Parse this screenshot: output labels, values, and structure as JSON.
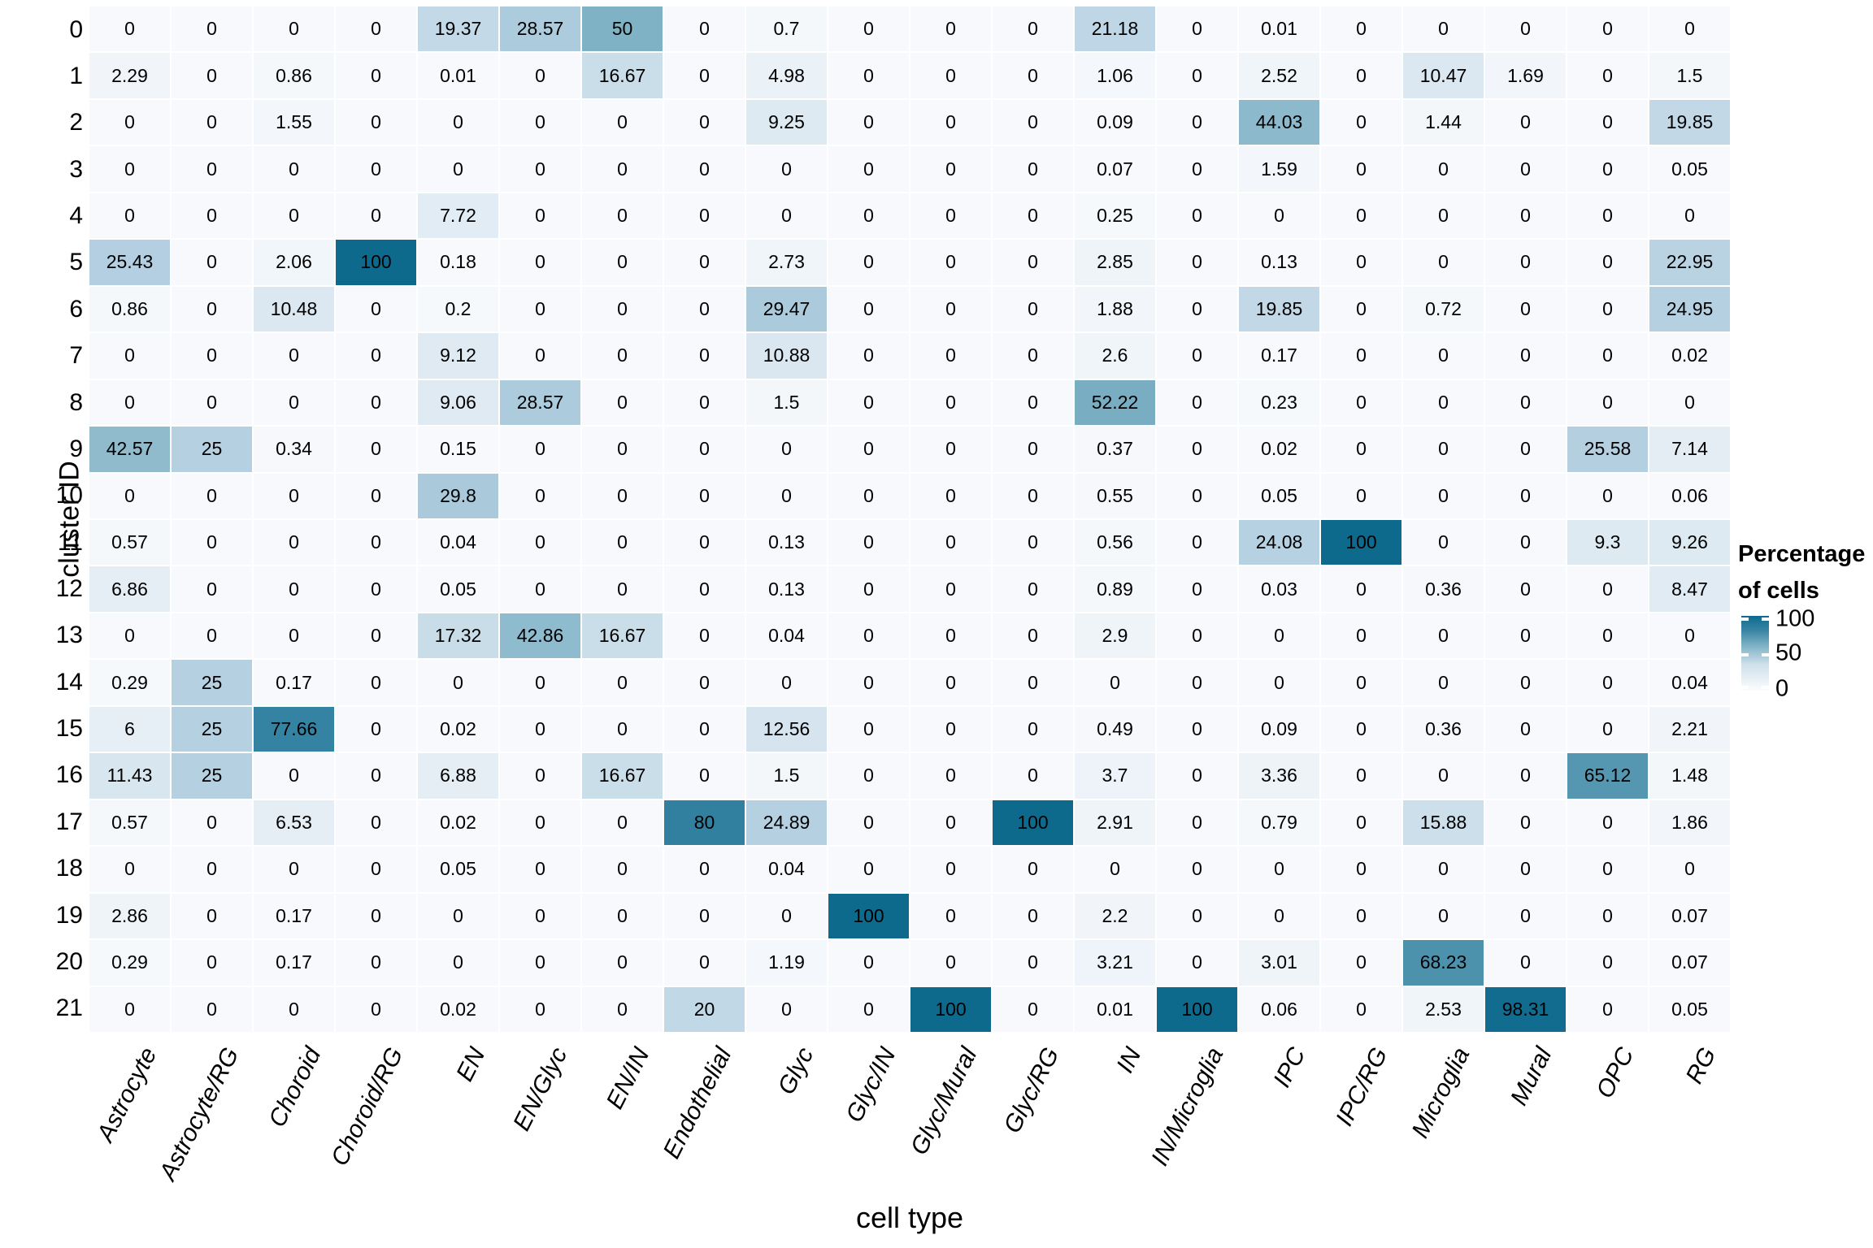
{
  "axes": {
    "y_label": "cluster ID",
    "x_label": "cell type"
  },
  "legend": {
    "title_line1": "Percentage",
    "title_line2": "of cells",
    "ticks": [
      "100",
      "50",
      "0"
    ]
  },
  "chart_data": {
    "type": "heatmap",
    "title": "",
    "xlabel": "cell type",
    "ylabel": "cluster ID",
    "legend_title": "Percentage of cells",
    "color_domain": [
      0,
      100
    ],
    "color_stops": [
      {
        "v": 0,
        "c": "#f7f9fc"
      },
      {
        "v": 25,
        "c": "#b4d0e1"
      },
      {
        "v": 50,
        "c": "#7fb2c5"
      },
      {
        "v": 75,
        "c": "#3a86a4"
      },
      {
        "v": 100,
        "c": "#0e6a8d"
      }
    ],
    "columns": [
      "Astrocyte",
      "Astrocyte/RG",
      "Choroid",
      "Choroid/RG",
      "EN",
      "EN/Glyc",
      "EN/IN",
      "Endothelial",
      "Glyc",
      "Glyc/IN",
      "Glyc/Mural",
      "Glyc/RG",
      "IN",
      "IN/Microglia",
      "IPC",
      "IPC/RG",
      "Microglia",
      "Mural",
      "OPC",
      "RG"
    ],
    "rows": [
      "0",
      "1",
      "2",
      "3",
      "4",
      "5",
      "6",
      "7",
      "8",
      "9",
      "10",
      "11",
      "12",
      "13",
      "14",
      "15",
      "16",
      "17",
      "18",
      "19",
      "20",
      "21"
    ],
    "values": [
      [
        "0",
        "0",
        "0",
        "0",
        "19.37",
        "28.57",
        "50",
        "0",
        "0.7",
        "0",
        "0",
        "0",
        "21.18",
        "0",
        "0.01",
        "0",
        "0",
        "0",
        "0",
        "0"
      ],
      [
        "2.29",
        "0",
        "0.86",
        "0",
        "0.01",
        "0",
        "16.67",
        "0",
        "4.98",
        "0",
        "0",
        "0",
        "1.06",
        "0",
        "2.52",
        "0",
        "10.47",
        "1.69",
        "0",
        "1.5"
      ],
      [
        "0",
        "0",
        "1.55",
        "0",
        "0",
        "0",
        "0",
        "0",
        "9.25",
        "0",
        "0",
        "0",
        "0.09",
        "0",
        "44.03",
        "0",
        "1.44",
        "0",
        "0",
        "19.85"
      ],
      [
        "0",
        "0",
        "0",
        "0",
        "0",
        "0",
        "0",
        "0",
        "0",
        "0",
        "0",
        "0",
        "0.07",
        "0",
        "1.59",
        "0",
        "0",
        "0",
        "0",
        "0.05"
      ],
      [
        "0",
        "0",
        "0",
        "0",
        "7.72",
        "0",
        "0",
        "0",
        "0",
        "0",
        "0",
        "0",
        "0.25",
        "0",
        "0",
        "0",
        "0",
        "0",
        "0",
        "0"
      ],
      [
        "25.43",
        "0",
        "2.06",
        "100",
        "0.18",
        "0",
        "0",
        "0",
        "2.73",
        "0",
        "0",
        "0",
        "2.85",
        "0",
        "0.13",
        "0",
        "0",
        "0",
        "0",
        "22.95"
      ],
      [
        "0.86",
        "0",
        "10.48",
        "0",
        "0.2",
        "0",
        "0",
        "0",
        "29.47",
        "0",
        "0",
        "0",
        "1.88",
        "0",
        "19.85",
        "0",
        "0.72",
        "0",
        "0",
        "24.95"
      ],
      [
        "0",
        "0",
        "0",
        "0",
        "9.12",
        "0",
        "0",
        "0",
        "10.88",
        "0",
        "0",
        "0",
        "2.6",
        "0",
        "0.17",
        "0",
        "0",
        "0",
        "0",
        "0.02"
      ],
      [
        "0",
        "0",
        "0",
        "0",
        "9.06",
        "28.57",
        "0",
        "0",
        "1.5",
        "0",
        "0",
        "0",
        "52.22",
        "0",
        "0.23",
        "0",
        "0",
        "0",
        "0",
        "0"
      ],
      [
        "42.57",
        "25",
        "0.34",
        "0",
        "0.15",
        "0",
        "0",
        "0",
        "0",
        "0",
        "0",
        "0",
        "0.37",
        "0",
        "0.02",
        "0",
        "0",
        "0",
        "25.58",
        "7.14"
      ],
      [
        "0",
        "0",
        "0",
        "0",
        "29.8",
        "0",
        "0",
        "0",
        "0",
        "0",
        "0",
        "0",
        "0.55",
        "0",
        "0.05",
        "0",
        "0",
        "0",
        "0",
        "0.06"
      ],
      [
        "0.57",
        "0",
        "0",
        "0",
        "0.04",
        "0",
        "0",
        "0",
        "0.13",
        "0",
        "0",
        "0",
        "0.56",
        "0",
        "24.08",
        "100",
        "0",
        "0",
        "9.3",
        "9.26"
      ],
      [
        "6.86",
        "0",
        "0",
        "0",
        "0.05",
        "0",
        "0",
        "0",
        "0.13",
        "0",
        "0",
        "0",
        "0.89",
        "0",
        "0.03",
        "0",
        "0.36",
        "0",
        "0",
        "8.47"
      ],
      [
        "0",
        "0",
        "0",
        "0",
        "17.32",
        "42.86",
        "16.67",
        "0",
        "0.04",
        "0",
        "0",
        "0",
        "2.9",
        "0",
        "0",
        "0",
        "0",
        "0",
        "0",
        "0"
      ],
      [
        "0.29",
        "25",
        "0.17",
        "0",
        "0",
        "0",
        "0",
        "0",
        "0",
        "0",
        "0",
        "0",
        "0",
        "0",
        "0",
        "0",
        "0",
        "0",
        "0",
        "0.04"
      ],
      [
        "6",
        "25",
        "77.66",
        "0",
        "0.02",
        "0",
        "0",
        "0",
        "12.56",
        "0",
        "0",
        "0",
        "0.49",
        "0",
        "0.09",
        "0",
        "0.36",
        "0",
        "0",
        "2.21"
      ],
      [
        "11.43",
        "25",
        "0",
        "0",
        "6.88",
        "0",
        "16.67",
        "0",
        "1.5",
        "0",
        "0",
        "0",
        "3.7",
        "0",
        "3.36",
        "0",
        "0",
        "0",
        "65.12",
        "1.48"
      ],
      [
        "0.57",
        "0",
        "6.53",
        "0",
        "0.02",
        "0",
        "0",
        "80",
        "24.89",
        "0",
        "0",
        "100",
        "2.91",
        "0",
        "0.79",
        "0",
        "15.88",
        "0",
        "0",
        "1.86"
      ],
      [
        "0",
        "0",
        "0",
        "0",
        "0.05",
        "0",
        "0",
        "0",
        "0.04",
        "0",
        "0",
        "0",
        "0",
        "0",
        "0",
        "0",
        "0",
        "0",
        "0",
        "0"
      ],
      [
        "2.86",
        "0",
        "0.17",
        "0",
        "0",
        "0",
        "0",
        "0",
        "0",
        "100",
        "0",
        "0",
        "2.2",
        "0",
        "0",
        "0",
        "0",
        "0",
        "0",
        "0.07"
      ],
      [
        "0.29",
        "0",
        "0.17",
        "0",
        "0",
        "0",
        "0",
        "0",
        "1.19",
        "0",
        "0",
        "0",
        "3.21",
        "0",
        "3.01",
        "0",
        "68.23",
        "0",
        "0",
        "0.07"
      ],
      [
        "0",
        "0",
        "0",
        "0",
        "0.02",
        "0",
        "0",
        "20",
        "0",
        "0",
        "100",
        "0",
        "0.01",
        "100",
        "0.06",
        "0",
        "2.53",
        "98.31",
        "0",
        "0.05"
      ]
    ]
  }
}
